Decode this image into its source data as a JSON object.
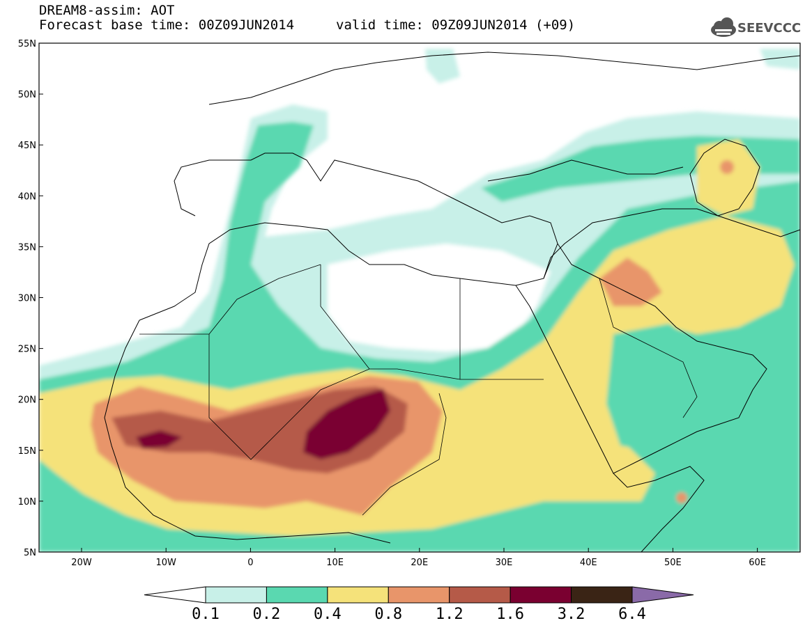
{
  "header": {
    "title_line1": "DREAM8-assim: AOT",
    "title_line2": "Forecast base time: 00Z09JUN2014",
    "valid_time": "valid time: 09Z09JUN2014 (+09)",
    "logo_text": "SEEVCCC",
    "logo_icon": "cloud-icon"
  },
  "map": {
    "lat_labels": [
      "55N",
      "50N",
      "45N",
      "40N",
      "35N",
      "30N",
      "25N",
      "20N",
      "15N",
      "10N",
      "5N"
    ],
    "lon_labels": [
      "20W",
      "10W",
      "0",
      "10E",
      "20E",
      "30E",
      "40E",
      "50E",
      "60E"
    ]
  },
  "colorbar": {
    "colors": [
      "#ffffff",
      "#c8f0e8",
      "#5ad8b0",
      "#f5e27a",
      "#e8956a",
      "#b55a48",
      "#7a0030",
      "#3a2415",
      "#8a6aa8"
    ],
    "labels": [
      "0.1",
      "0.2",
      "0.4",
      "0.8",
      "1.2",
      "1.6",
      "3.2",
      "6.4"
    ]
  }
}
